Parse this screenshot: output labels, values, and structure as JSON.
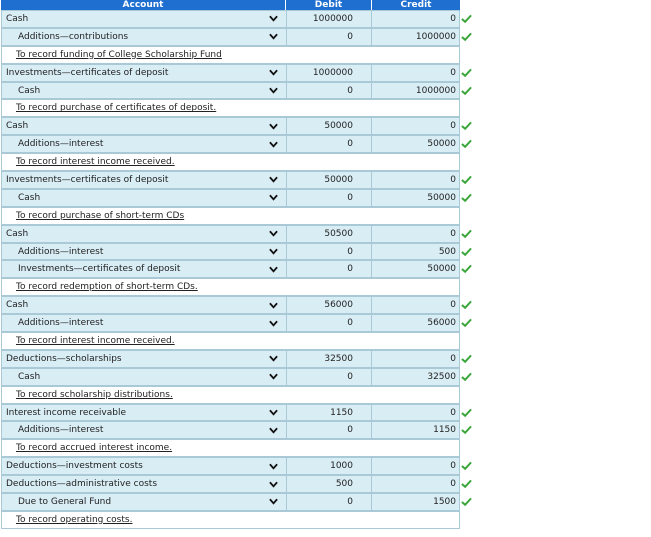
{
  "header": {
    "account": "Account",
    "debit": "Debit",
    "credit": "Credit"
  },
  "rows": [
    {
      "type": "entry",
      "indent": false,
      "account": "Cash",
      "debit": "1000000",
      "credit": "0"
    },
    {
      "type": "entry",
      "indent": true,
      "account": "Additions—contributions",
      "debit": "0",
      "credit": "1000000"
    },
    {
      "type": "memo",
      "text": "To record funding of College Scholarship Fund"
    },
    {
      "type": "entry",
      "indent": false,
      "account": "Investments—certificates of deposit",
      "debit": "1000000",
      "credit": "0"
    },
    {
      "type": "entry",
      "indent": true,
      "account": "Cash",
      "debit": "0",
      "credit": "1000000"
    },
    {
      "type": "memo",
      "text": "To record purchase of certificates of deposit."
    },
    {
      "type": "entry",
      "indent": false,
      "account": "Cash",
      "debit": "50000",
      "credit": "0"
    },
    {
      "type": "entry",
      "indent": true,
      "account": "Additions—interest",
      "debit": "0",
      "credit": "50000"
    },
    {
      "type": "memo",
      "text": "To record interest income received."
    },
    {
      "type": "entry",
      "indent": false,
      "account": "Investments—certificates of deposit",
      "debit": "50000",
      "credit": "0"
    },
    {
      "type": "entry",
      "indent": true,
      "account": "Cash",
      "debit": "0",
      "credit": "50000"
    },
    {
      "type": "memo",
      "text": "To record purchase of short-term CDs"
    },
    {
      "type": "entry",
      "indent": false,
      "account": "Cash",
      "debit": "50500",
      "credit": "0"
    },
    {
      "type": "entry",
      "indent": true,
      "account": "Additions—interest",
      "debit": "0",
      "credit": "500"
    },
    {
      "type": "entry",
      "indent": true,
      "account": "Investments—certificates of deposit",
      "debit": "0",
      "credit": "50000"
    },
    {
      "type": "memo",
      "text": "To record redemption of short-term CDs."
    },
    {
      "type": "entry",
      "indent": false,
      "account": "Cash",
      "debit": "56000",
      "credit": "0"
    },
    {
      "type": "entry",
      "indent": true,
      "account": "Additions—interest",
      "debit": "0",
      "credit": "56000"
    },
    {
      "type": "memo",
      "text": "To record interest income received."
    },
    {
      "type": "entry",
      "indent": false,
      "account": "Deductions—scholarships",
      "debit": "32500",
      "credit": "0"
    },
    {
      "type": "entry",
      "indent": true,
      "account": "Cash",
      "debit": "0",
      "credit": "32500"
    },
    {
      "type": "memo",
      "text": "To record scholarship distributions."
    },
    {
      "type": "entry",
      "indent": false,
      "account": "Interest income receivable",
      "debit": "1150",
      "credit": "0"
    },
    {
      "type": "entry",
      "indent": true,
      "account": "Additions—interest",
      "debit": "0",
      "credit": "1150"
    },
    {
      "type": "memo",
      "text": "To record accrued interest income."
    },
    {
      "type": "entry",
      "indent": false,
      "account": "Deductions—investment costs",
      "debit": "1000",
      "credit": "0"
    },
    {
      "type": "entry",
      "indent": false,
      "account": "Deductions—administrative costs",
      "debit": "500",
      "credit": "0"
    },
    {
      "type": "entry",
      "indent": true,
      "account": "Due to General Fund",
      "debit": "0",
      "credit": "1500"
    },
    {
      "type": "memo",
      "text": "To record operating costs."
    }
  ],
  "icons": {
    "dropdown": "chevron-down-icon",
    "correct": "check-icon"
  },
  "colors": {
    "header_bg": "#1f6fd1",
    "cell_bg": "#d9edf5",
    "check": "#3aa63a"
  }
}
